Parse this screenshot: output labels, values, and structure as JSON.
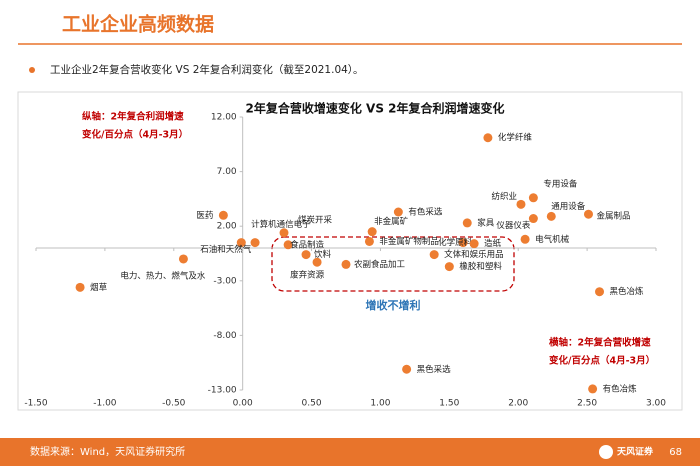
{
  "header": {
    "title": "工业企业高频数据",
    "bullet": "工业企业2年复合营收变化 VS 2年复合利润变化（截至2021.04）。"
  },
  "chart_data": {
    "type": "scatter",
    "title": "2年复合营收增速变化 VS 2年复合利润增速变化",
    "y_axis_note": [
      "纵轴：2年复合利润增速",
      "变化/百分点（4月-3月）"
    ],
    "x_axis_note": [
      "横轴：2年复合营收增速",
      "变化/百分点（4月-3月）"
    ],
    "annotation": "增收不增利",
    "color": "#ed7d31",
    "labels": [
      "化学纤维",
      "专用设备",
      "纺织业",
      "通用设备",
      "金属制品",
      "仪器仪表",
      "电气机械",
      "家具",
      "有色采选",
      "非金属矿",
      "非金属矿物制品",
      "化学原料",
      "造纸",
      "文体和娱乐用品",
      "橡胶和塑料",
      "农副食品加工",
      "饮料",
      "废弃资源",
      "食品制造",
      "煤炭开采",
      "计算机通信电子",
      "石油和天然气",
      "医药",
      "电力、热力、燃气及水",
      "烟草",
      "黑色冶炼",
      "黑色采选",
      "有色冶炼"
    ],
    "x": [
      1.78,
      2.11,
      2.02,
      2.24,
      2.51,
      2.11,
      2.05,
      1.63,
      1.13,
      0.94,
      0.92,
      1.6,
      1.68,
      1.39,
      1.5,
      0.75,
      0.46,
      0.54,
      0.33,
      0.3,
      0.09,
      -0.01,
      -0.14,
      -0.43,
      -1.18,
      2.59,
      1.19,
      2.54
    ],
    "values": [
      10.1,
      4.6,
      4.0,
      2.9,
      3.1,
      2.7,
      0.8,
      2.3,
      3.3,
      1.5,
      0.6,
      0.5,
      0.4,
      -0.6,
      -1.7,
      -1.5,
      -0.6,
      -1.3,
      0.3,
      1.4,
      0.5,
      0.5,
      3.0,
      -1.0,
      -3.6,
      -4.0,
      -11.1,
      -12.9
    ],
    "xlim": [
      -1.5,
      3.0
    ],
    "ylim": [
      -13,
      12
    ],
    "xticks": [
      {
        "value": -1.5,
        "label": "-1.50"
      },
      {
        "value": -1.0,
        "label": "-1.00"
      },
      {
        "value": -0.5,
        "label": "-0.50"
      },
      {
        "value": 0,
        "label": "0.00"
      },
      {
        "value": 0.5,
        "label": "0.50"
      },
      {
        "value": 1.0,
        "label": "1.00"
      },
      {
        "value": 1.5,
        "label": "1.50"
      },
      {
        "value": 2.0,
        "label": "2.00"
      },
      {
        "value": 2.5,
        "label": "2.50"
      },
      {
        "value": 3.0,
        "label": "3.00"
      }
    ],
    "yticks": [
      {
        "value": 12,
        "label": "12.00"
      },
      {
        "value": 7,
        "label": "7.00"
      },
      {
        "value": 2,
        "label": "2.00"
      },
      {
        "value": -3,
        "label": "-3.00"
      },
      {
        "value": -8,
        "label": "-8.00"
      },
      {
        "value": -13,
        "label": "-13.00"
      }
    ]
  },
  "footer": {
    "source": "数据来源：Wind，天风证券研究所",
    "logo": "天风证券",
    "page": "68"
  }
}
